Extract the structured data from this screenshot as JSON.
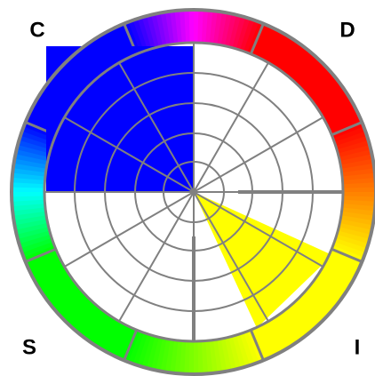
{
  "labels": {
    "c": "C",
    "d": "D",
    "s": "S",
    "i": "I"
  }
}
